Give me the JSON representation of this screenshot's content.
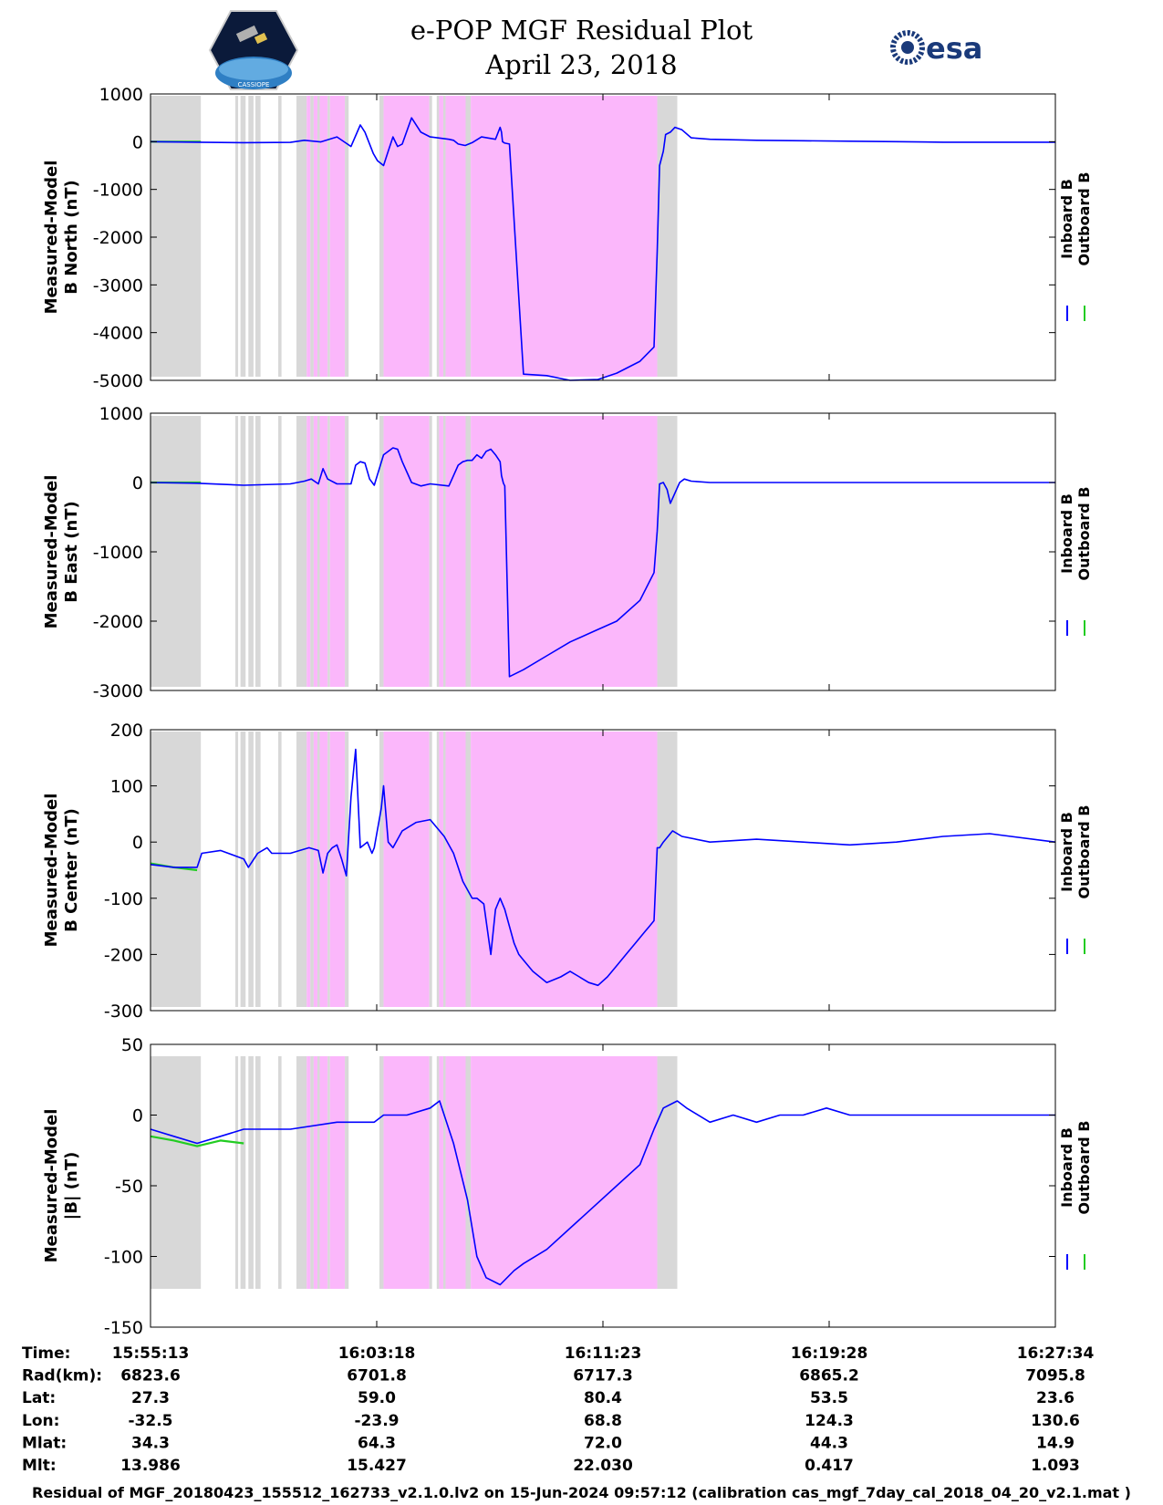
{
  "header": {
    "title": "e-POP MGF Residual Plot",
    "date": "April 23, 2018",
    "left_logo": "cassiope-satellite-logo",
    "left_logo_text": "CASSIOPE",
    "right_logo": "esa-logo",
    "right_logo_text": "esa"
  },
  "colors": {
    "inboard": "#0000ff",
    "outboard": "#22cc22",
    "gray_band": "#d8d8d8",
    "magenta_band": "#fbb7fb"
  },
  "chart_data": {
    "type": "line",
    "shared_x": {
      "unit": "seconds since 15:55:13",
      "range": [
        0,
        1941
      ],
      "tick_labels": [
        "15:55:13",
        "16:03:18",
        "16:11:23",
        "16:19:28",
        "16:27:34"
      ]
    },
    "shaded_intervals": [
      {
        "color": "gray",
        "from": 0,
        "to": 108
      },
      {
        "color": "gray",
        "from": 182,
        "to": 188
      },
      {
        "color": "gray",
        "from": 193,
        "to": 204
      },
      {
        "color": "gray",
        "from": 210,
        "to": 221
      },
      {
        "color": "gray",
        "from": 225,
        "to": 236
      },
      {
        "color": "gray",
        "from": 274,
        "to": 281
      },
      {
        "color": "gray",
        "from": 313,
        "to": 335
      },
      {
        "color": "magenta",
        "from": 335,
        "to": 343
      },
      {
        "color": "gray",
        "from": 343,
        "to": 350
      },
      {
        "color": "magenta",
        "from": 350,
        "to": 358
      },
      {
        "color": "gray",
        "from": 358,
        "to": 363
      },
      {
        "color": "magenta",
        "from": 363,
        "to": 380
      },
      {
        "color": "gray",
        "from": 380,
        "to": 385
      },
      {
        "color": "magenta",
        "from": 385,
        "to": 417
      },
      {
        "color": "gray",
        "from": 417,
        "to": 425
      },
      {
        "color": "gray",
        "from": 491,
        "to": 500
      },
      {
        "color": "magenta",
        "from": 500,
        "to": 598
      },
      {
        "color": "gray",
        "from": 598,
        "to": 604
      },
      {
        "color": "gray",
        "from": 614,
        "to": 619
      },
      {
        "color": "magenta",
        "from": 619,
        "to": 628
      },
      {
        "color": "gray",
        "from": 628,
        "to": 633
      },
      {
        "color": "magenta",
        "from": 633,
        "to": 676
      },
      {
        "color": "gray",
        "from": 676,
        "to": 687
      },
      {
        "color": "magenta",
        "from": 687,
        "to": 1087
      },
      {
        "color": "gray",
        "from": 1087,
        "to": 1130
      }
    ],
    "panels": [
      {
        "ylabel": [
          "Measured-Model",
          "B North (nT)"
        ],
        "ylim": [
          -5000,
          1000
        ],
        "ytick_labels": [
          "1000",
          "0",
          "-1000",
          "-2000",
          "-3000",
          "-4000",
          "-5000"
        ],
        "legend": [
          "Inboard B",
          "Outboard B"
        ],
        "series": [
          {
            "name": "Inboard B",
            "x": [
              0,
              100,
              200,
              300,
              330,
              365,
              400,
              430,
              450,
              460,
              470,
              478,
              487,
              500,
              510,
              520,
              530,
              540,
              560,
              580,
              600,
              640,
              650,
              660,
              675,
              690,
              710,
              740,
              750,
              753,
              755,
              760,
              770,
              800,
              850,
              900,
              960,
              1000,
              1050,
              1080,
              1087,
              1092,
              1100,
              1105,
              1115,
              1125,
              1140,
              1160,
              1200,
              1300,
              1400,
              1500,
              1600,
              1700,
              1800,
              1941
            ],
            "y": [
              0,
              -10,
              -20,
              -15,
              30,
              -5,
              100,
              -100,
              350,
              200,
              -50,
              -250,
              -400,
              -500,
              -200,
              100,
              -100,
              -50,
              500,
              200,
              100,
              50,
              30,
              -50,
              -80,
              -20,
              100,
              50,
              300,
              200,
              0,
              -30,
              -50,
              -4870,
              -4900,
              -5000,
              -4980,
              -4850,
              -4600,
              -4300,
              -2300,
              -500,
              -200,
              150,
              200,
              300,
              250,
              80,
              50,
              30,
              20,
              10,
              0,
              -10,
              -10,
              -10
            ]
          },
          {
            "name": "Outboard B",
            "x": [
              0,
              108
            ],
            "y": [
              0,
              0
            ]
          }
        ]
      },
      {
        "ylabel": [
          "Measured-Model",
          "B East (nT)"
        ],
        "ylim": [
          -3000,
          1000
        ],
        "ytick_labels": [
          "1000",
          "0",
          "-1000",
          "-2000",
          "-3000"
        ],
        "legend": [
          "Inboard B",
          "Outboard B"
        ],
        "series": [
          {
            "name": "Inboard B",
            "x": [
              0,
              100,
              200,
              300,
              330,
              345,
              360,
              370,
              380,
              400,
              430,
              440,
              450,
              460,
              470,
              480,
              500,
              520,
              530,
              540,
              560,
              580,
              600,
              640,
              650,
              660,
              670,
              680,
              690,
              700,
              710,
              720,
              730,
              740,
              750,
              753,
              757,
              760,
              770,
              800,
              850,
              900,
              950,
              1000,
              1050,
              1080,
              1087,
              1092,
              1100,
              1108,
              1115,
              1125,
              1135,
              1145,
              1160,
              1200,
              1300,
              1400,
              1500,
              1600,
              1700,
              1800,
              1941
            ],
            "y": [
              0,
              -10,
              -40,
              -20,
              20,
              50,
              -20,
              200,
              50,
              -20,
              -20,
              250,
              300,
              280,
              50,
              -40,
              400,
              500,
              480,
              300,
              0,
              -50,
              -20,
              -50,
              100,
              250,
              300,
              320,
              320,
              400,
              350,
              450,
              480,
              400,
              300,
              100,
              -10,
              -50,
              -2800,
              -2700,
              -2500,
              -2300,
              -2150,
              -2000,
              -1700,
              -1300,
              -700,
              -20,
              0,
              -100,
              -300,
              -150,
              0,
              50,
              20,
              0,
              0,
              0,
              0,
              0,
              0,
              0,
              0
            ]
          },
          {
            "name": "Outboard B",
            "x": [
              0,
              108
            ],
            "y": [
              0,
              0
            ]
          }
        ]
      },
      {
        "ylabel": [
          "Measured-Model",
          "B Center (nT)"
        ],
        "ylim": [
          -300,
          200
        ],
        "ytick_labels": [
          "200",
          "100",
          "0",
          "-100",
          "-200",
          "-300"
        ],
        "legend": [
          "Inboard B",
          "Outboard B"
        ],
        "series": [
          {
            "name": "Inboard B",
            "x": [
              0,
              50,
              100,
              110,
              150,
              200,
              210,
              230,
              240,
              250,
              260,
              300,
              340,
              360,
              370,
              380,
              390,
              400,
              410,
              420,
              430,
              440,
              450,
              465,
              475,
              480,
              495,
              500,
              510,
              520,
              540,
              570,
              600,
              630,
              650,
              670,
              690,
              700,
              715,
              730,
              740,
              750,
              760,
              770,
              780,
              790,
              800,
              820,
              850,
              880,
              900,
              920,
              940,
              960,
              980,
              1000,
              1020,
              1040,
              1060,
              1070,
              1080,
              1087,
              1092,
              1100,
              1120,
              1140,
              1200,
              1300,
              1400,
              1500,
              1600,
              1700,
              1800,
              1941
            ],
            "y": [
              -40,
              -45,
              -45,
              -20,
              -15,
              -30,
              -45,
              -20,
              -15,
              -10,
              -20,
              -20,
              -10,
              -15,
              -55,
              -20,
              -10,
              -5,
              -30,
              -60,
              80,
              165,
              -10,
              0,
              -20,
              -10,
              60,
              100,
              0,
              -10,
              20,
              35,
              40,
              10,
              -20,
              -70,
              -100,
              -100,
              -110,
              -200,
              -120,
              -100,
              -120,
              -150,
              -180,
              -200,
              -210,
              -230,
              -250,
              -240,
              -230,
              -240,
              -250,
              -255,
              -240,
              -220,
              -200,
              -180,
              -160,
              -150,
              -140,
              -10,
              -10,
              0,
              20,
              10,
              0,
              5,
              0,
              -5,
              0,
              10,
              15,
              0
            ]
          },
          {
            "name": "Outboard B",
            "x": [
              0,
              50,
              100
            ],
            "y": [
              -38,
              -45,
              -50
            ]
          }
        ]
      },
      {
        "ylabel": [
          "Measured-Model",
          "|B| (nT)"
        ],
        "ylim": [
          -150,
          50
        ],
        "ytick_labels": [
          "50",
          "0",
          "-50",
          "-100",
          "-150"
        ],
        "legend": [
          "Inboard B",
          "Outboard B"
        ],
        "series": [
          {
            "name": "Inboard B",
            "x": [
              0,
              50,
              100,
              150,
              200,
              300,
              400,
              480,
              500,
              550,
              600,
              620,
              650,
              680,
              700,
              720,
              750,
              780,
              800,
              850,
              900,
              950,
              1000,
              1050,
              1080,
              1100,
              1130,
              1150,
              1200,
              1250,
              1300,
              1350,
              1400,
              1450,
              1500,
              1600,
              1700,
              1800,
              1941
            ],
            "y": [
              -10,
              -15,
              -20,
              -15,
              -10,
              -10,
              -5,
              -5,
              0,
              0,
              5,
              10,
              -20,
              -60,
              -100,
              -115,
              -120,
              -110,
              -105,
              -95,
              -80,
              -65,
              -50,
              -35,
              -10,
              5,
              10,
              5,
              -5,
              0,
              -5,
              0,
              0,
              5,
              0,
              0,
              0,
              0,
              0
            ]
          },
          {
            "name": "Outboard B",
            "x": [
              0,
              50,
              100,
              150,
              200
            ],
            "y": [
              -15,
              -18,
              -22,
              -18,
              -20
            ]
          }
        ]
      }
    ]
  },
  "orbit_table": {
    "rows": [
      {
        "label": "Time:",
        "values": [
          "15:55:13",
          "16:03:18",
          "16:11:23",
          "16:19:28",
          "16:27:34"
        ]
      },
      {
        "label": "Rad(km):",
        "values": [
          "6823.6",
          "6701.8",
          "6717.3",
          "6865.2",
          "7095.8"
        ]
      },
      {
        "label": "Lat:",
        "values": [
          "27.3",
          "59.0",
          "80.4",
          "53.5",
          "23.6"
        ]
      },
      {
        "label": "Lon:",
        "values": [
          "-32.5",
          "-23.9",
          "68.8",
          "124.3",
          "130.6"
        ]
      },
      {
        "label": "Mlat:",
        "values": [
          "34.3",
          "64.3",
          "72.0",
          "44.3",
          "14.9"
        ]
      },
      {
        "label": "Mlt:",
        "values": [
          "13.986",
          "15.427",
          "22.030",
          "0.417",
          "1.093"
        ]
      }
    ]
  },
  "footer": "Residual of MGF_20180423_155512_162733_v2.1.0.lv2 on 15-Jun-2024 09:57:12 (calibration cas_mgf_7day_cal_2018_04_20_v2.1.mat )"
}
